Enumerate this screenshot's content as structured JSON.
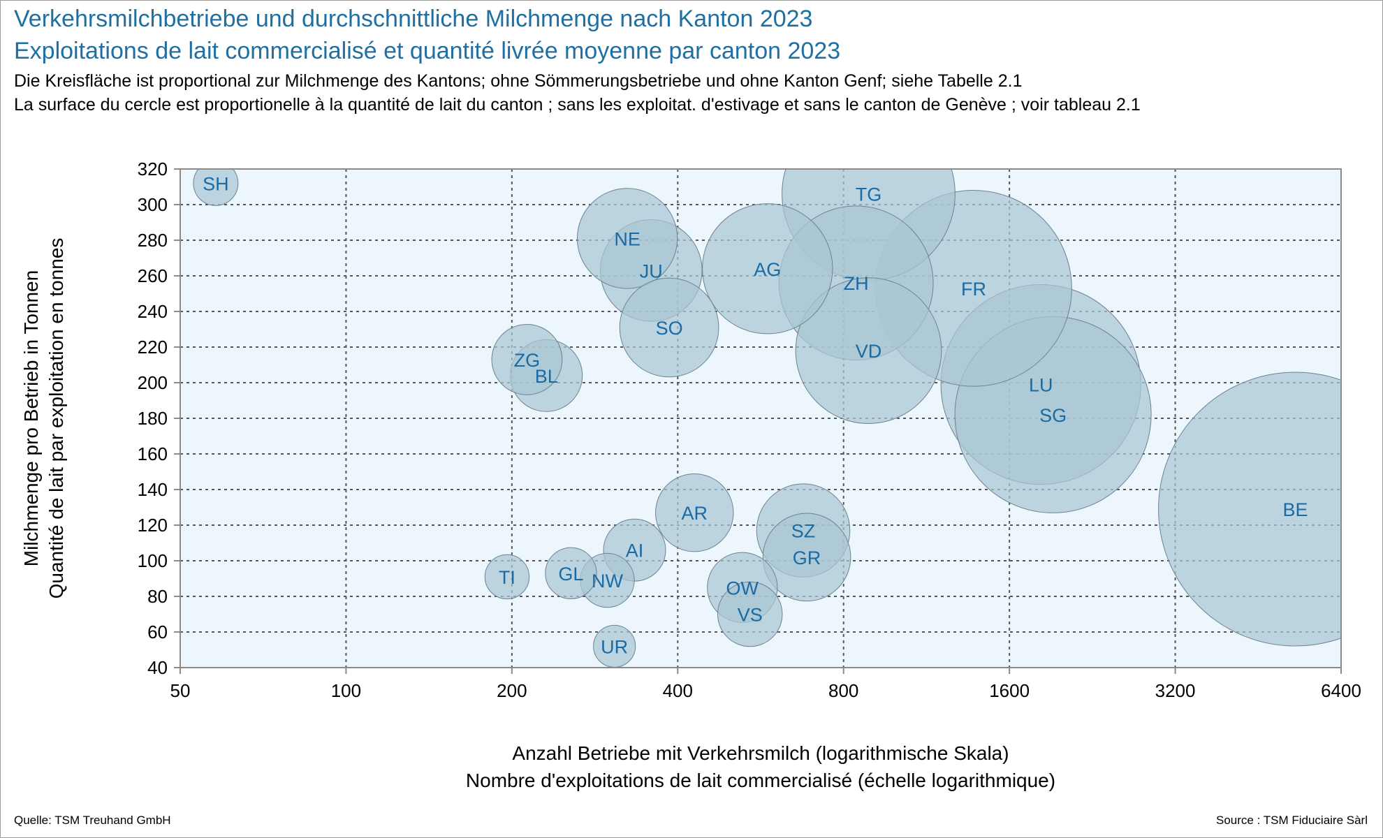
{
  "header": {
    "title_de": "Verkehrsmilchbetriebe und durchschnittliche Milchmenge nach Kanton 2023",
    "title_fr": "Exploitations de lait commercialisé et quantité livrée moyenne par canton 2023",
    "note_de": "Die Kreisfläche ist proportional zur Milchmenge des Kantons; ohne Sömmerungsbetriebe und ohne Kanton Genf; siehe Tabelle 2.1",
    "note_fr": "La surface du cercle est proportionelle à la quantité de lait du canton ; sans les exploitat. d'estivage et sans le canton de Genève ; voir tableau 2.1"
  },
  "footer": {
    "source_de": "Quelle: TSM Treuhand GmbH",
    "source_fr": "Source : TSM Fiduciaire Sàrl"
  },
  "colors": {
    "plot_background": "#edf6fd",
    "bubble_fill": "#a9c6d2",
    "bubble_stroke": "#6c8390",
    "label_text": "#1a6aa3",
    "title_text": "#1f6fa3",
    "grid": "#555555"
  },
  "chart_data": {
    "type": "scatter",
    "variant": "bubble",
    "x_scale": "log2",
    "grid": true,
    "xlabel": [
      "Anzahl Betriebe mit Verkehrsmilch (logarithmische Skala)",
      "Nombre d'exploitations de lait commercialisé (échelle logarithmique)"
    ],
    "ylabel": [
      "Milchmenge pro Betrieb in Tonnen",
      "Quantité de lait par exploitation en tonnes"
    ],
    "xlim": [
      50,
      6400
    ],
    "ylim": [
      40,
      320
    ],
    "xticks": [
      50,
      100,
      200,
      400,
      800,
      1600,
      3200,
      6400
    ],
    "yticks": [
      40,
      60,
      80,
      100,
      120,
      140,
      160,
      180,
      200,
      220,
      240,
      260,
      280,
      300,
      320
    ],
    "size_meaning": "area proportional to canton milk quantity (tonnes)",
    "points": [
      {
        "label": "SH",
        "x": 58,
        "y": 312,
        "size": 18100
      },
      {
        "label": "NE",
        "x": 324,
        "y": 281,
        "size": 91000
      },
      {
        "label": "JU",
        "x": 358,
        "y": 263,
        "size": 94000
      },
      {
        "label": "AG",
        "x": 582,
        "y": 264,
        "size": 154000
      },
      {
        "label": "TG",
        "x": 888,
        "y": 306,
        "size": 272000
      },
      {
        "label": "ZH",
        "x": 843,
        "y": 256,
        "size": 216000
      },
      {
        "label": "FR",
        "x": 1378,
        "y": 253,
        "size": 349000
      },
      {
        "label": "SO",
        "x": 386,
        "y": 231,
        "size": 89000
      },
      {
        "label": "VD",
        "x": 888,
        "y": 218,
        "size": 193000
      },
      {
        "label": "ZG",
        "x": 213,
        "y": 213,
        "size": 45000
      },
      {
        "label": "BL",
        "x": 231,
        "y": 204,
        "size": 47000
      },
      {
        "label": "LU",
        "x": 1825,
        "y": 199,
        "size": 363000
      },
      {
        "label": "SG",
        "x": 1920,
        "y": 182,
        "size": 350000
      },
      {
        "label": "BE",
        "x": 5287,
        "y": 129,
        "size": 681000
      },
      {
        "label": "AR",
        "x": 429,
        "y": 127,
        "size": 55000
      },
      {
        "label": "SZ",
        "x": 676,
        "y": 117,
        "size": 79000
      },
      {
        "label": "GR",
        "x": 686,
        "y": 102,
        "size": 70000
      },
      {
        "label": "AI",
        "x": 334,
        "y": 106,
        "size": 35000
      },
      {
        "label": "TI",
        "x": 196,
        "y": 91,
        "size": 17800
      },
      {
        "label": "GL",
        "x": 256,
        "y": 93,
        "size": 23800
      },
      {
        "label": "NW",
        "x": 298,
        "y": 89,
        "size": 26500
      },
      {
        "label": "OW",
        "x": 524,
        "y": 85,
        "size": 44500
      },
      {
        "label": "VS",
        "x": 541,
        "y": 70,
        "size": 37900
      },
      {
        "label": "UR",
        "x": 307,
        "y": 52,
        "size": 16000
      }
    ]
  }
}
